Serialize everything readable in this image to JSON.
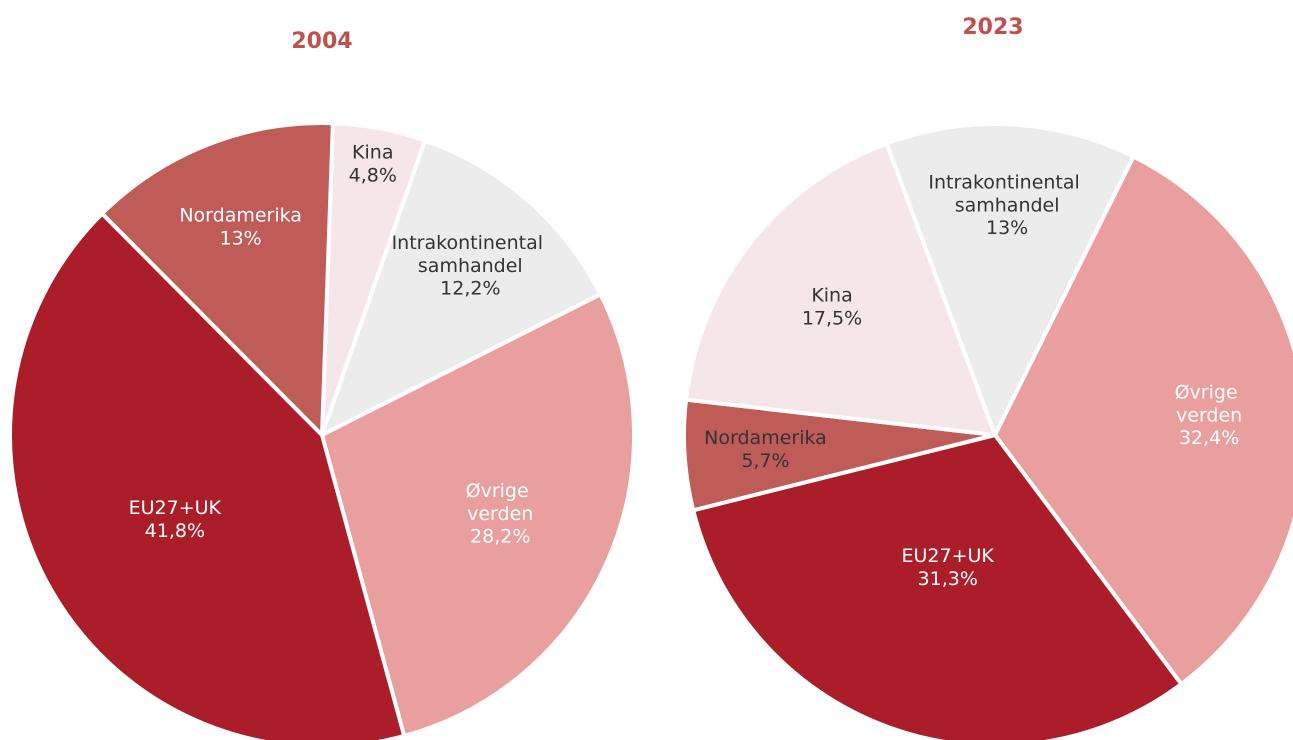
{
  "chart_data": [
    {
      "type": "pie",
      "title": "2004",
      "categories": [
        "Kina",
        "Intrakontinental samhandel",
        "Øvrige verden",
        "EU27+UK",
        "Nordamerika"
      ],
      "values": [
        4.8,
        12.2,
        28.2,
        41.8,
        13
      ],
      "value_labels": [
        "4,8%",
        "12,2%",
        "28,2%",
        "41,8%",
        "13%"
      ],
      "colors": [
        "#f5e6ea",
        "#ececec",
        "#e89f9e",
        "#ab1d28",
        "#c05c58"
      ],
      "label_colors": [
        "#333333",
        "#333333",
        "#ffffff",
        "#ffffff",
        "#ffffff"
      ]
    },
    {
      "type": "pie",
      "title": "2023",
      "categories": [
        "Intrakontinental samhandel",
        "Øvrige verden",
        "EU27+UK",
        "Nordamerika",
        "Kina"
      ],
      "values": [
        13,
        32.4,
        31.3,
        5.7,
        17.5
      ],
      "value_labels": [
        "13%",
        "32,4%",
        "31,3%",
        "5,7%",
        "17,5%"
      ],
      "colors": [
        "#ececec",
        "#e89f9e",
        "#ab1d28",
        "#c05c58",
        "#f5e6ea"
      ],
      "label_colors": [
        "#333333",
        "#ffffff",
        "#ffffff",
        "#333333",
        "#333333"
      ]
    }
  ]
}
